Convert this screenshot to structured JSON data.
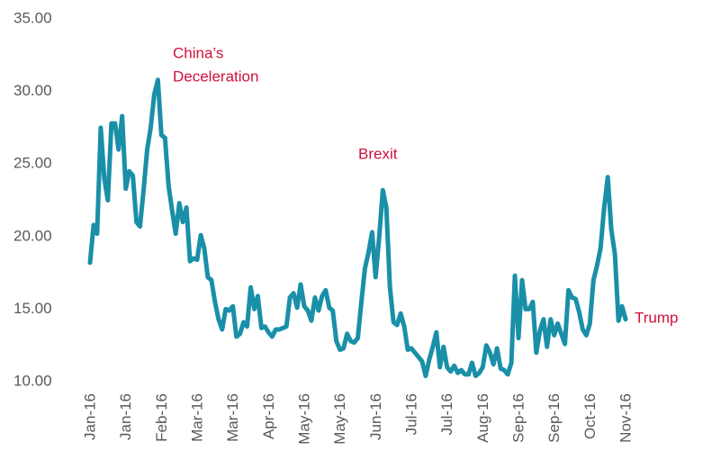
{
  "chart_data": {
    "type": "line",
    "categories": [
      "Jan-16",
      null,
      null,
      null,
      null,
      null,
      null,
      null,
      null,
      null,
      "Jan-16",
      null,
      null,
      null,
      null,
      null,
      null,
      null,
      null,
      null,
      "Feb-16",
      null,
      null,
      null,
      null,
      null,
      null,
      null,
      null,
      null,
      "Mar-16",
      null,
      null,
      null,
      null,
      null,
      null,
      null,
      null,
      null,
      "Mar-16",
      null,
      null,
      null,
      null,
      null,
      null,
      null,
      null,
      null,
      "Apr-16",
      null,
      null,
      null,
      null,
      null,
      null,
      null,
      null,
      null,
      "May-16",
      null,
      null,
      null,
      null,
      null,
      null,
      null,
      null,
      null,
      "May-16",
      null,
      null,
      null,
      null,
      null,
      null,
      null,
      null,
      null,
      "Jun-16",
      null,
      null,
      null,
      null,
      null,
      null,
      null,
      null,
      null,
      "Jul-16",
      null,
      null,
      null,
      null,
      null,
      null,
      null,
      null,
      null,
      "Jul-16",
      null,
      null,
      null,
      null,
      null,
      null,
      null,
      null,
      null,
      "Aug-16",
      null,
      null,
      null,
      null,
      null,
      null,
      null,
      null,
      null,
      "Sep-16",
      null,
      null,
      null,
      null,
      null,
      null,
      null,
      null,
      null,
      "Sep-16",
      null,
      null,
      null,
      null,
      null,
      null,
      null,
      null,
      null,
      "Oct-16",
      null,
      null,
      null,
      null,
      null,
      null,
      null,
      null,
      null,
      "Nov-16"
    ],
    "values": [
      18.2,
      20.8,
      20.2,
      27.5,
      24,
      22.5,
      27.8,
      27.8,
      26,
      28.3,
      23.3,
      24.5,
      24.2,
      21,
      20.7,
      23.2,
      26,
      27.5,
      29.8,
      30.8,
      27,
      26.8,
      23.5,
      21.8,
      20.2,
      22.3,
      21,
      22,
      18.3,
      18.5,
      18.4,
      20.1,
      19.2,
      17.2,
      17,
      15.5,
      14.3,
      13.6,
      15,
      14.9,
      15.2,
      13.1,
      13.3,
      14.1,
      13.8,
      16.5,
      15,
      15.9,
      13.7,
      13.8,
      13.4,
      13.1,
      13.6,
      13.6,
      13.7,
      13.8,
      15.8,
      16.1,
      15.1,
      16.7,
      15.2,
      14.9,
      14.2,
      15.8,
      14.9,
      15.9,
      16.3,
      15.1,
      14.9,
      12.8,
      12.2,
      12.3,
      13.3,
      12.8,
      12.7,
      13,
      15.5,
      17.8,
      18.9,
      20.3,
      17.2,
      20,
      23.2,
      22,
      16.5,
      14.1,
      13.9,
      14.7,
      13.8,
      12.2,
      12.3,
      12,
      11.7,
      11.4,
      10.4,
      11.5,
      12.4,
      13.4,
      11,
      12.4,
      11,
      10.7,
      11.1,
      10.6,
      10.8,
      10.5,
      10.5,
      11.3,
      10.4,
      10.6,
      11,
      12.5,
      12,
      11.2,
      12.3,
      10.9,
      10.8,
      10.5,
      11.3,
      17.3,
      13,
      17,
      15,
      15,
      15.5,
      12,
      13.5,
      14.3,
      12.4,
      14.3,
      13.2,
      14,
      13.3,
      12.6,
      16.3,
      15.8,
      15.7,
      14.8,
      13.6,
      13.2,
      14,
      17,
      18,
      19.2,
      22,
      24.1,
      20.5,
      18.8,
      14.2,
      15.2,
      14.3
    ],
    "color": "#1a8fa8",
    "ylim": [
      10,
      35
    ],
    "yticks": [
      {
        "value": 10,
        "label": "10.00"
      },
      {
        "value": 15,
        "label": "15.00"
      },
      {
        "value": 20,
        "label": "20.00"
      },
      {
        "value": 25,
        "label": "25.00"
      },
      {
        "value": 30,
        "label": "30.00"
      },
      {
        "value": 35,
        "label": "35.00"
      }
    ],
    "grid": false,
    "annotations": [
      {
        "lines": [
          "China’s",
          "Deceleration"
        ]
      },
      {
        "lines": [
          "Brexit"
        ]
      },
      {
        "lines": [
          "Trump"
        ]
      }
    ]
  }
}
